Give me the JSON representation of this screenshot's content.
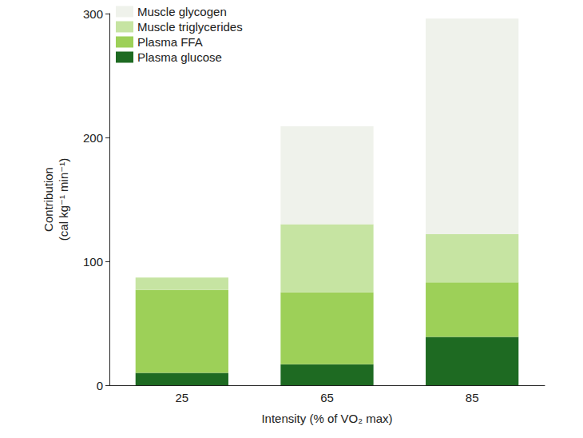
{
  "chart_data": {
    "type": "bar",
    "stacked": true,
    "x_label": "Intensity (% of VO₂ max)",
    "y_label": "Contribution\n(cal kg⁻¹ min⁻¹)",
    "categories": [
      "25",
      "65",
      "85"
    ],
    "series": [
      {
        "name": "Plasma glucose",
        "color": "#1e6a22",
        "values": [
          10,
          17,
          39
        ]
      },
      {
        "name": "Plasma FFA",
        "color": "#9dd058",
        "values": [
          67,
          58,
          44
        ]
      },
      {
        "name": "Muscle triglycerides",
        "color": "#c6e4a2",
        "values": [
          10,
          55,
          39
        ]
      },
      {
        "name": "Muscle glycogen",
        "color": "#eff2eb",
        "values": [
          0,
          79,
          174
        ]
      }
    ],
    "ylim": [
      0,
      300
    ],
    "yticks": [
      0,
      100,
      200,
      300
    ],
    "grid": false,
    "legend": "top-left"
  }
}
